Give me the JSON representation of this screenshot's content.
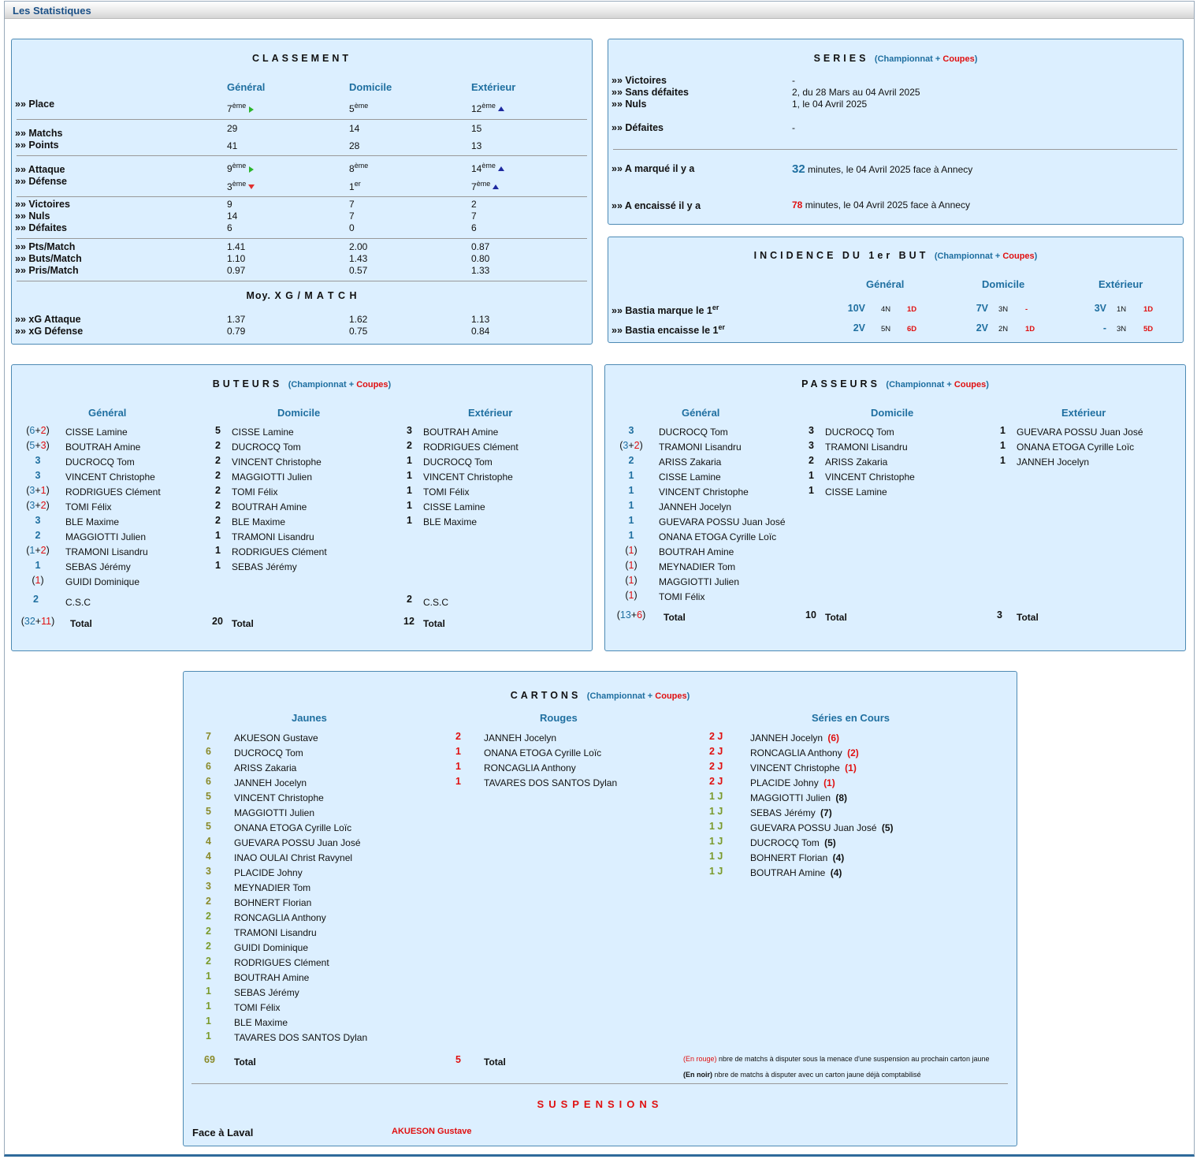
{
  "page_title": "Les Statistiques",
  "colors": {
    "accent": "#1f6fa0",
    "red": "#e01010",
    "panel_bg": "#dcefff",
    "olive": "#8a8a2a"
  },
  "classement": {
    "title": "CLASSEMENT",
    "cols": [
      "Général",
      "Domicile",
      "Extérieur"
    ],
    "place_label": "»» Place",
    "place": [
      {
        "n": "7",
        "s": "ème",
        "icon": "right-arrow-icon"
      },
      {
        "n": "5",
        "s": "ème",
        "icon": ""
      },
      {
        "n": "12",
        "s": "ème",
        "icon": "up-arrow-icon"
      }
    ],
    "matchs_label": "»» Matchs",
    "matchs": [
      "29",
      "14",
      "15"
    ],
    "points_label": "»» Points",
    "points": [
      "41",
      "28",
      "13"
    ],
    "attaque_label": "»» Attaque",
    "attaque": [
      {
        "n": "9",
        "s": "ème",
        "icon": "right-arrow-icon"
      },
      {
        "n": "8",
        "s": "ème",
        "icon": ""
      },
      {
        "n": "14",
        "s": "ème",
        "icon": "up-arrow-icon"
      }
    ],
    "defense_label": "»» Défense",
    "defense": [
      {
        "n": "3",
        "s": "ème",
        "icon": "down-arrow-icon"
      },
      {
        "n": "1",
        "s": "er",
        "icon": ""
      },
      {
        "n": "7",
        "s": "ème",
        "icon": "up-arrow-icon"
      }
    ],
    "victoires_label": "»» Victoires",
    "victoires": [
      "9",
      "7",
      "2"
    ],
    "nuls_label": "»» Nuls",
    "nuls": [
      "14",
      "7",
      "7"
    ],
    "defaites_label": "»» Défaites",
    "defaites": [
      "6",
      "0",
      "6"
    ],
    "ptsmatch_label": "»» Pts/Match",
    "ptsmatch": [
      "1.41",
      "2.00",
      "0.87"
    ],
    "butsmatch_label": "»» Buts/Match",
    "butsmatch": [
      "1.10",
      "1.43",
      "0.80"
    ],
    "prismatch_label": "»» Pris/Match",
    "prismatch": [
      "0.97",
      "0.57",
      "1.33"
    ],
    "xg_title": "Moy. X G / M A T C H",
    "xga_label": "»» xG Attaque",
    "xga": [
      "1.37",
      "1.62",
      "1.13"
    ],
    "xgd_label": "»» xG Défense",
    "xgd": [
      "0.79",
      "0.75",
      "0.84"
    ]
  },
  "series": {
    "title": "SERIES",
    "sub_a": "(Championnat",
    "sub_plus": " + ",
    "sub_b": "Coupes",
    "sub_c": ")",
    "victoires_label": "»» Victoires",
    "victoires": "-",
    "sansdef_label": "»» Sans défaites",
    "sansdef": "2, du 28 Mars au 04 Avril 2025",
    "nuls_label": "»» Nuls",
    "nuls": "1, le 04 Avril 2025",
    "defaites_label": "»» Défaites",
    "defaites": "-",
    "marque_label": "»» A marqué il y a",
    "marque_num": "32",
    "marque_text": " minutes, le 04 Avril 2025 face à Annecy",
    "encaisse_label": "»» A encaissé il y a",
    "encaisse_num": "78",
    "encaisse_text": " minutes, le 04 Avril 2025 face à Annecy"
  },
  "incidence": {
    "title": "INCIDENCE DU 1er BUT",
    "sub_a": "(Championnat",
    "sub_plus": " + ",
    "sub_b": "Coupes",
    "sub_c": ")",
    "cols": [
      "Général",
      "Domicile",
      "Extérieur"
    ],
    "rows": [
      {
        "label": "»» Bastia marque le 1",
        "sup": "er",
        "cells": [
          [
            "10V",
            "4N",
            "1D"
          ],
          [
            "7V",
            "3N",
            "-"
          ],
          [
            "3V",
            "1N",
            "1D"
          ]
        ]
      },
      {
        "label": "»» Bastia encaisse le 1",
        "sup": "er",
        "cells": [
          [
            "2V",
            "5N",
            "6D"
          ],
          [
            "2V",
            "2N",
            "1D"
          ],
          [
            "-",
            "3N",
            "5D"
          ]
        ]
      }
    ]
  },
  "buteurs": {
    "title": "BUTEURS",
    "sub_a": "(Championnat",
    "sub_plus": " + ",
    "sub_b": "Coupes",
    "sub_c": ")",
    "cols": [
      "Général",
      "Domicile",
      "Extérieur"
    ],
    "general": [
      {
        "a": "6",
        "b": "2",
        "name": "CISSE Lamine"
      },
      {
        "a": "5",
        "b": "3",
        "name": "BOUTRAH Amine"
      },
      {
        "a": "3",
        "b": "",
        "name": "DUCROCQ Tom"
      },
      {
        "a": "3",
        "b": "",
        "name": "VINCENT Christophe"
      },
      {
        "a": "3",
        "b": "1",
        "name": "RODRIGUES Clément"
      },
      {
        "a": "3",
        "b": "2",
        "name": "TOMI Félix"
      },
      {
        "a": "3",
        "b": "",
        "name": "BLE Maxime"
      },
      {
        "a": "2",
        "b": "",
        "name": "MAGGIOTTI Julien"
      },
      {
        "a": "1",
        "b": "2",
        "name": "TRAMONI Lisandru"
      },
      {
        "a": "1",
        "b": "",
        "name": "SEBAS Jérémy"
      },
      {
        "a": "",
        "b": "1",
        "name": "GUIDI Dominique"
      }
    ],
    "domicile": [
      {
        "n": "5",
        "name": "CISSE Lamine"
      },
      {
        "n": "2",
        "name": "DUCROCQ Tom"
      },
      {
        "n": "2",
        "name": "VINCENT Christophe"
      },
      {
        "n": "2",
        "name": "MAGGIOTTI Julien"
      },
      {
        "n": "2",
        "name": "TOMI Félix"
      },
      {
        "n": "2",
        "name": "BOUTRAH Amine"
      },
      {
        "n": "2",
        "name": "BLE Maxime"
      },
      {
        "n": "1",
        "name": "TRAMONI Lisandru"
      },
      {
        "n": "1",
        "name": "RODRIGUES Clément"
      },
      {
        "n": "1",
        "name": "SEBAS Jérémy"
      }
    ],
    "exterieur": [
      {
        "n": "3",
        "name": "BOUTRAH Amine"
      },
      {
        "n": "2",
        "name": "RODRIGUES Clément"
      },
      {
        "n": "1",
        "name": "DUCROCQ Tom"
      },
      {
        "n": "1",
        "name": "VINCENT Christophe"
      },
      {
        "n": "1",
        "name": "TOMI Félix"
      },
      {
        "n": "1",
        "name": "CISSE Lamine"
      },
      {
        "n": "1",
        "name": "BLE Maxime"
      }
    ],
    "csc_general": "2",
    "csc_exterieur": "2",
    "csc_label": "C.S.C",
    "total_general_a": "32",
    "total_general_b": "11",
    "total_domicile": "20",
    "total_exterieur": "12",
    "total_label": "Total"
  },
  "passeurs": {
    "title": "PASSEURS",
    "sub_a": "(Championnat",
    "sub_plus": " + ",
    "sub_b": "Coupes",
    "sub_c": ")",
    "cols": [
      "Général",
      "Domicile",
      "Extérieur"
    ],
    "general": [
      {
        "a": "3",
        "b": "",
        "name": "DUCROCQ Tom"
      },
      {
        "a": "3",
        "b": "2",
        "name": "TRAMONI Lisandru"
      },
      {
        "a": "2",
        "b": "",
        "name": "ARISS Zakaria"
      },
      {
        "a": "1",
        "b": "",
        "name": "CISSE Lamine"
      },
      {
        "a": "1",
        "b": "",
        "name": "VINCENT Christophe"
      },
      {
        "a": "1",
        "b": "",
        "name": "JANNEH Jocelyn"
      },
      {
        "a": "1",
        "b": "",
        "name": "GUEVARA POSSU Juan José"
      },
      {
        "a": "1",
        "b": "",
        "name": "ONANA ETOGA Cyrille Loïc"
      },
      {
        "a": "",
        "b": "1",
        "name": "BOUTRAH Amine"
      },
      {
        "a": "",
        "b": "1",
        "name": "MEYNADIER Tom"
      },
      {
        "a": "",
        "b": "1",
        "name": "MAGGIOTTI Julien"
      },
      {
        "a": "",
        "b": "1",
        "name": "TOMI Félix"
      }
    ],
    "domicile": [
      {
        "n": "3",
        "name": "DUCROCQ Tom"
      },
      {
        "n": "3",
        "name": "TRAMONI Lisandru"
      },
      {
        "n": "2",
        "name": "ARISS Zakaria"
      },
      {
        "n": "1",
        "name": "VINCENT Christophe"
      },
      {
        "n": "1",
        "name": "CISSE Lamine"
      }
    ],
    "exterieur": [
      {
        "n": "1",
        "name": "GUEVARA POSSU Juan José"
      },
      {
        "n": "1",
        "name": "ONANA ETOGA Cyrille Loïc"
      },
      {
        "n": "1",
        "name": "JANNEH Jocelyn"
      }
    ],
    "total_general_a": "13",
    "total_general_b": "6",
    "total_domicile": "10",
    "total_exterieur": "3",
    "total_label": "Total"
  },
  "cartons": {
    "title": "CARTONS",
    "sub_a": "(Championnat",
    "sub_plus": " + ",
    "sub_b": "Coupes",
    "sub_c": ")",
    "cols": [
      "Jaunes",
      "Rouges",
      "Séries en Cours"
    ],
    "jaunes": [
      {
        "n": "7",
        "name": "AKUESON Gustave"
      },
      {
        "n": "6",
        "name": "DUCROCQ Tom"
      },
      {
        "n": "6",
        "name": "ARISS Zakaria"
      },
      {
        "n": "6",
        "name": "JANNEH Jocelyn"
      },
      {
        "n": "5",
        "name": "VINCENT Christophe"
      },
      {
        "n": "5",
        "name": "MAGGIOTTI Julien"
      },
      {
        "n": "5",
        "name": "ONANA ETOGA Cyrille Loïc"
      },
      {
        "n": "4",
        "name": "GUEVARA POSSU Juan José"
      },
      {
        "n": "4",
        "name": "INAO OULAI Christ Ravynel"
      },
      {
        "n": "3",
        "name": "PLACIDE Johny"
      },
      {
        "n": "3",
        "name": "MEYNADIER Tom"
      },
      {
        "n": "2",
        "name": "BOHNERT Florian"
      },
      {
        "n": "2",
        "name": "RONCAGLIA Anthony"
      },
      {
        "n": "2",
        "name": "TRAMONI Lisandru"
      },
      {
        "n": "2",
        "name": "GUIDI Dominique"
      },
      {
        "n": "2",
        "name": "RODRIGUES Clément"
      },
      {
        "n": "1",
        "name": "BOUTRAH Amine"
      },
      {
        "n": "1",
        "name": "SEBAS Jérémy"
      },
      {
        "n": "1",
        "name": "TOMI Félix"
      },
      {
        "n": "1",
        "name": "BLE Maxime"
      },
      {
        "n": "1",
        "name": "TAVARES DOS SANTOS Dylan"
      }
    ],
    "rouges": [
      {
        "n": "2",
        "name": "JANNEH Jocelyn"
      },
      {
        "n": "1",
        "name": "ONANA ETOGA Cyrille Loïc"
      },
      {
        "n": "1",
        "name": "RONCAGLIA Anthony"
      },
      {
        "n": "1",
        "name": "TAVARES DOS SANTOS Dylan"
      }
    ],
    "series": [
      {
        "j": "2 J",
        "name": "JANNEH Jocelyn",
        "k": "(6)",
        "red": true
      },
      {
        "j": "2 J",
        "name": "RONCAGLIA Anthony",
        "k": "(2)",
        "red": true
      },
      {
        "j": "2 J",
        "name": "VINCENT Christophe",
        "k": "(1)",
        "red": true
      },
      {
        "j": "2 J",
        "name": "PLACIDE Johny",
        "k": "(1)",
        "red": true
      },
      {
        "j": "1 J",
        "name": "MAGGIOTTI Julien",
        "k": "(8)",
        "red": false
      },
      {
        "j": "1 J",
        "name": "SEBAS Jérémy",
        "k": "(7)",
        "red": false
      },
      {
        "j": "1 J",
        "name": "GUEVARA POSSU Juan José",
        "k": "(5)",
        "red": false
      },
      {
        "j": "1 J",
        "name": "DUCROCQ Tom",
        "k": "(5)",
        "red": false
      },
      {
        "j": "1 J",
        "name": "BOHNERT Florian",
        "k": "(4)",
        "red": false
      },
      {
        "j": "1 J",
        "name": "BOUTRAH Amine",
        "k": "(4)",
        "red": false
      }
    ],
    "total_jaunes": "69",
    "total_rouges": "5",
    "total_label": "Total",
    "note_red_a": "(En rouge)",
    "note_red_b": " nbre de matchs à disputer sous la menace d'une suspension au prochain carton jaune",
    "note_black_a": "(En noir)",
    "note_black_b": " nbre de matchs à disputer avec un carton jaune déjà comptabilisé",
    "susp_title": "SUSPENSIONS",
    "susp_label": "Face à Laval",
    "susp_player": "AKUESON Gustave"
  }
}
